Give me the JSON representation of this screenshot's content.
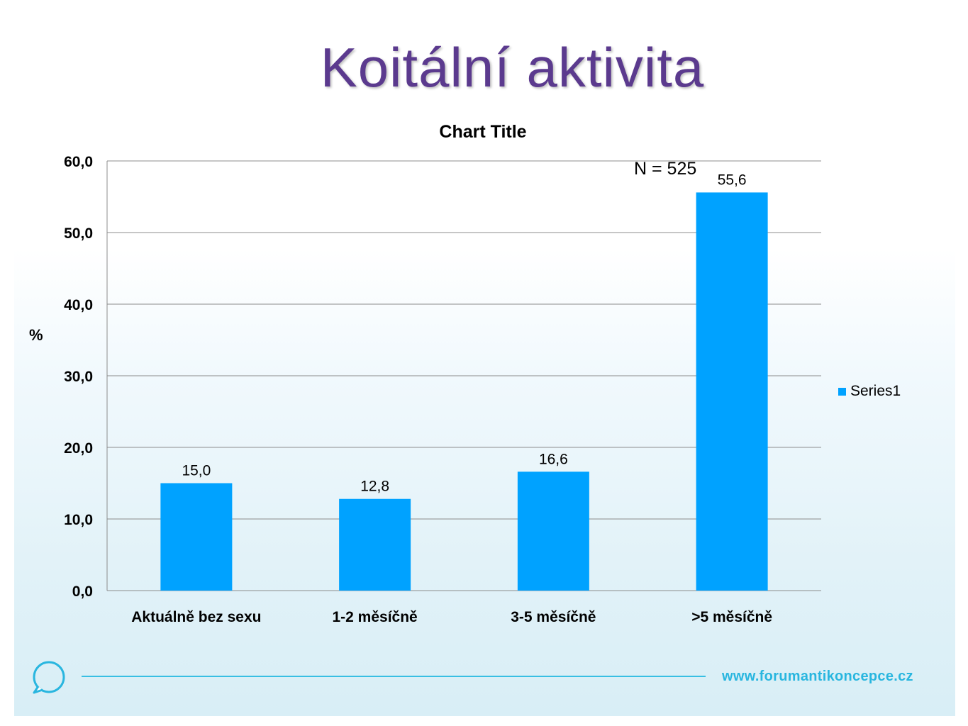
{
  "slide": {
    "title": "Koitální aktivita",
    "footer_url": "www.forumantikoncepce.cz"
  },
  "annotation": "N = 525",
  "colors": {
    "bar": "#00a2ff",
    "title": "#5b3a8e",
    "footer": "#29b6df"
  },
  "chart_data": {
    "type": "bar",
    "title": "Chart Title",
    "xlabel": "",
    "ylabel": "%",
    "categories": [
      "Aktuálně bez sexu",
      "1-2 měsíčně",
      "3-5 měsíčně",
      ">5  měsíčně"
    ],
    "series": [
      {
        "name": "Series1",
        "values": [
          15.0,
          12.8,
          16.6,
          55.6
        ]
      }
    ],
    "data_labels": [
      "15,0",
      "12,8",
      "16,6",
      "55,6"
    ],
    "y_ticks": [
      "0,0",
      "10,0",
      "20,0",
      "30,0",
      "40,0",
      "50,0",
      "60,0"
    ],
    "ylim": [
      0,
      60
    ],
    "grid": true,
    "legend_position": "right"
  }
}
